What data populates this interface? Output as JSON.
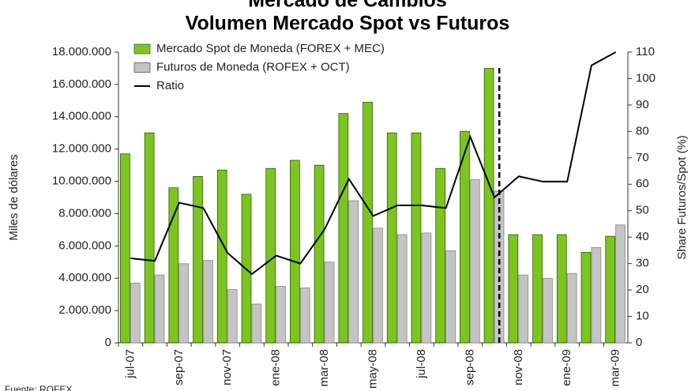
{
  "chart_data": {
    "type": "bar",
    "title": "Mercado de Cambios",
    "subtitle": "Volumen Mercado Spot vs Futuros",
    "y_label": "Miles de dólares",
    "y2_label": "Share Futuros/Spot (%)",
    "source": "Fuente: ROFEX",
    "categories": [
      "jul-07",
      null,
      "sep-07",
      null,
      "nov-07",
      null,
      "ene-08",
      null,
      "mar-08",
      null,
      "may-08",
      null,
      "jul-08",
      null,
      "sep-08",
      null,
      "nov-08",
      null,
      "ene-09",
      null,
      "mar-09"
    ],
    "series": [
      {
        "name": "Mercado Spot de Moneda (FOREX + MEC)",
        "color": "#7cc520",
        "type": "bar",
        "values": [
          11700000,
          13000000,
          9600000,
          10300000,
          10700000,
          9200000,
          10800000,
          11300000,
          11000000,
          14200000,
          14900000,
          13000000,
          13000000,
          10800000,
          13100000,
          17000000,
          6700000,
          6700000,
          6700000,
          5600000,
          6600000
        ]
      },
      {
        "name": "Futuros de Moneda (ROFEX + OCT)",
        "color": "#c4c4c4",
        "type": "bar",
        "values": [
          3700000,
          4200000,
          4900000,
          5100000,
          3300000,
          2400000,
          3500000,
          3400000,
          5000000,
          8800000,
          7100000,
          6700000,
          6800000,
          5700000,
          10100000,
          9400000,
          4200000,
          4000000,
          4300000,
          5900000,
          7300000
        ]
      },
      {
        "name": "Ratio",
        "color": "#000000",
        "type": "line",
        "axis": "y2",
        "values": [
          32,
          31,
          53,
          51,
          34,
          26,
          33,
          30,
          43,
          62,
          48,
          52,
          52,
          51,
          78,
          55,
          63,
          61,
          61,
          105,
          110
        ]
      }
    ],
    "ylim": [
      0,
      18000000
    ],
    "yticks": [
      0,
      {
        "value": 2000000,
        "label": "2.000.000"
      },
      {
        "value": 4000000,
        "label": "4.000.000"
      },
      {
        "value": 6000000,
        "label": "6.000.000"
      },
      {
        "value": 8000000,
        "label": "8.000.000"
      },
      {
        "value": 10000000,
        "label": "10.000.000"
      },
      {
        "value": 12000000,
        "label": "12.000.000"
      },
      {
        "value": 14000000,
        "label": "14.000.000"
      },
      {
        "value": 16000000,
        "label": "16.000.000"
      },
      {
        "value": 18000000,
        "label": "18.000.000"
      }
    ],
    "y2lim": [
      0,
      110
    ],
    "y2ticks": [
      0,
      10,
      20,
      30,
      40,
      50,
      60,
      70,
      80,
      90,
      100,
      110
    ],
    "legend": "upper left"
  }
}
